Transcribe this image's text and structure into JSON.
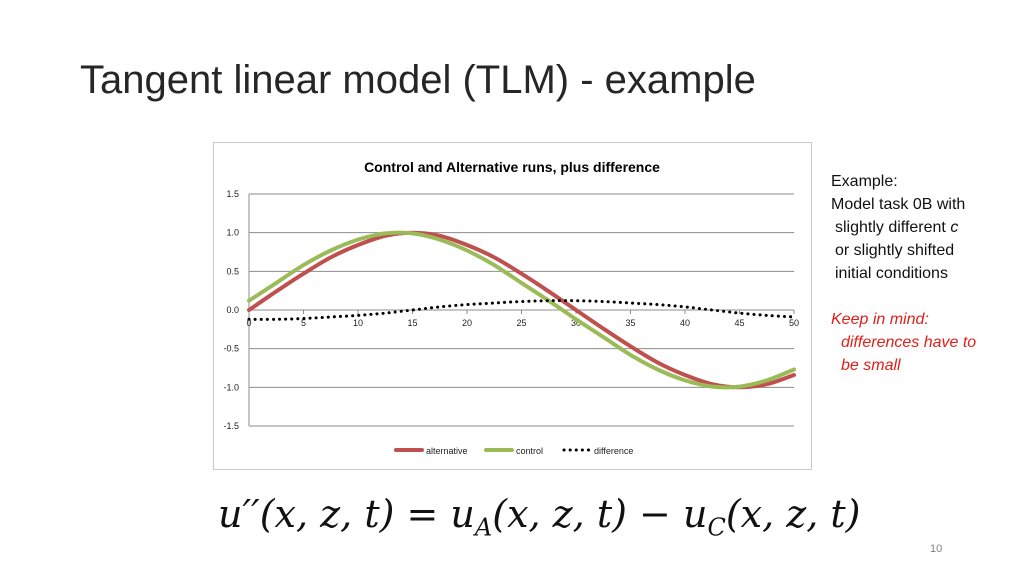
{
  "slide": {
    "title": "Tangent linear model (TLM) - example",
    "page_number": "10"
  },
  "notes": {
    "lines": [
      "Example:",
      "Model task 0B with",
      "slightly different",
      "or slightly shifted",
      "initial conditions"
    ],
    "param_symbol": "c",
    "keep_in_mind": [
      "Keep in mind:",
      "differences have to",
      "be small"
    ]
  },
  "equation": {
    "lhs": "u′′(x, z, t)",
    "eq": " = ",
    "term_a": "u",
    "sub_a": "A",
    "args_a": "(x, z, t)",
    "minus": " − ",
    "term_c": "u",
    "sub_c": "C",
    "args_c": "(x, z, t)"
  },
  "chart_data": {
    "type": "line",
    "title": "Control and Alternative runs, plus difference",
    "xlabel": "",
    "ylabel": "",
    "xlim": [
      0,
      50
    ],
    "ylim": [
      -1.5,
      1.5
    ],
    "x_ticks": [
      0,
      5,
      10,
      15,
      20,
      25,
      30,
      35,
      40,
      45,
      50
    ],
    "y_ticks": [
      1.5,
      1.0,
      0.5,
      0.0,
      -0.5,
      -1.0,
      -1.5
    ],
    "y_tick_labels": [
      "1.5",
      "1.0",
      "0.5",
      "0.0",
      "-0.5",
      "-1.0",
      "-1.5"
    ],
    "grid": "horizontal",
    "legend": "bottom",
    "x": [
      0,
      2.5,
      5,
      7.5,
      10,
      12.5,
      15,
      17.5,
      20,
      22.5,
      25,
      27.5,
      30,
      32.5,
      35,
      37.5,
      40,
      42.5,
      45,
      47.5,
      50
    ],
    "series": [
      {
        "name": "alternative",
        "color": "#c0504d",
        "style": "solid",
        "values": [
          0.0,
          0.24,
          0.47,
          0.68,
          0.84,
          0.96,
          1.0,
          0.96,
          0.84,
          0.68,
          0.47,
          0.24,
          0.0,
          -0.24,
          -0.47,
          -0.68,
          -0.84,
          -0.96,
          -1.0,
          -0.96,
          -0.84
        ]
      },
      {
        "name": "control",
        "color": "#9bbb59",
        "style": "solid",
        "values": [
          0.12,
          0.35,
          0.58,
          0.77,
          0.91,
          0.99,
          0.99,
          0.91,
          0.77,
          0.58,
          0.35,
          0.12,
          -0.12,
          -0.35,
          -0.58,
          -0.77,
          -0.91,
          -0.99,
          -0.99,
          -0.91,
          -0.77
        ]
      },
      {
        "name": "difference",
        "color": "#000000",
        "style": "dotted",
        "values": [
          -0.12,
          -0.12,
          -0.11,
          -0.09,
          -0.07,
          -0.04,
          0.0,
          0.04,
          0.07,
          0.09,
          0.11,
          0.12,
          0.12,
          0.11,
          0.09,
          0.07,
          0.04,
          0.0,
          -0.04,
          -0.07,
          -0.09
        ]
      }
    ]
  }
}
